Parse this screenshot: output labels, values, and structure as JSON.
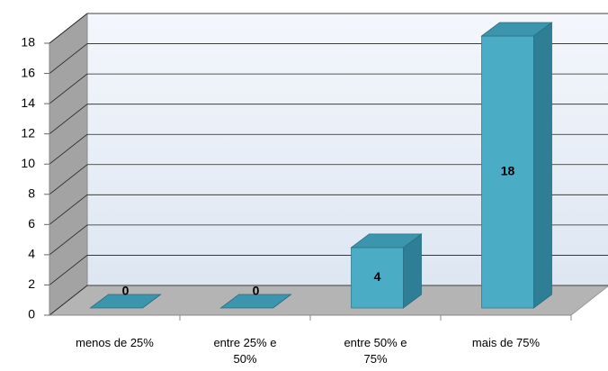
{
  "chart_data": {
    "type": "bar",
    "categories": [
      "menos de 25%",
      "entre 25% e 50%",
      "entre 50% e 75%",
      "mais de 75%"
    ],
    "values": [
      0,
      0,
      4,
      18
    ],
    "color": "#4bacc6",
    "ylim": [
      0,
      18
    ],
    "yticks": [
      0,
      2,
      4,
      6,
      8,
      10,
      12,
      14,
      16,
      18
    ],
    "grid": true
  }
}
